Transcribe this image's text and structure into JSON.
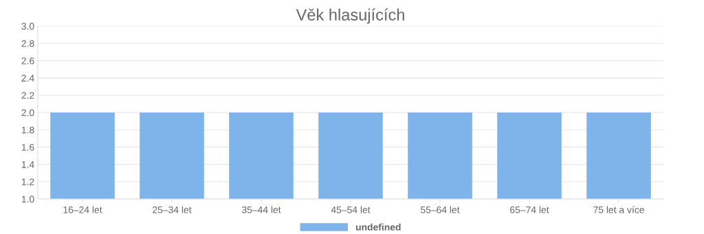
{
  "chart_data": {
    "type": "bar",
    "title": "Věk hlasujících",
    "categories": [
      "16–24 let",
      "25–34 let",
      "35–44 let",
      "45–54 let",
      "55–64 let",
      "65–74 let",
      "75 let a více"
    ],
    "series": [
      {
        "name": "undefined",
        "color": "#7eb4ea",
        "values": [
          2,
          2,
          2,
          2,
          2,
          2,
          2
        ]
      }
    ],
    "ylim": [
      1,
      3
    ],
    "yticks": [
      {
        "value": 1,
        "label": "1.0"
      },
      {
        "value": 1.2,
        "label": "1.2"
      },
      {
        "value": 1.4,
        "label": "1.4"
      },
      {
        "value": 1.6,
        "label": "1.6"
      },
      {
        "value": 1.8,
        "label": "1.8"
      },
      {
        "value": 2,
        "label": "2.0"
      },
      {
        "value": 2.2,
        "label": "2.2"
      },
      {
        "value": 2.4,
        "label": "2.4"
      },
      {
        "value": 2.6,
        "label": "2.6"
      },
      {
        "value": 2.8,
        "label": "2.8"
      },
      {
        "value": 3,
        "label": "3.0"
      }
    ],
    "grid": "y",
    "legend": "bottom"
  }
}
